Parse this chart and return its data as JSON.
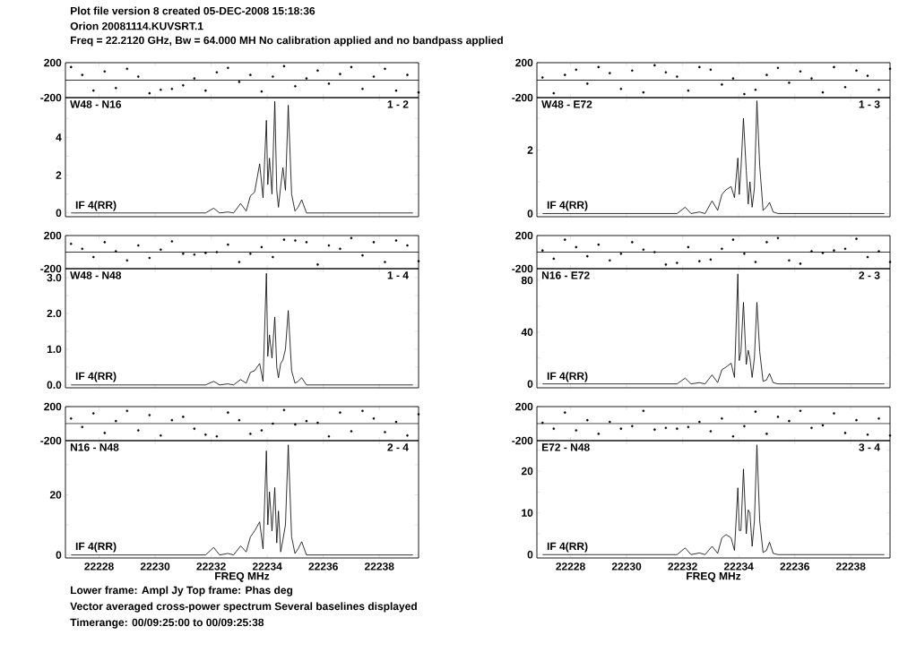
{
  "chart_data": [
    {
      "type": "scatter",
      "title": "Plot file version 8  created 05-DEC-2008 15:18:36",
      "subtitle": "Orion  20081114.KUVSRT.1",
      "annotations": [
        "Freq = 22.2120 GHz, Bw = 64.000 MH   No calibration applied and no bandpass applied"
      ],
      "marker": "circle",
      "color": "#000000",
      "xlim": [
        22226.8,
        22239.4
      ],
      "xticks": [
        22228,
        22230,
        22232,
        22234,
        22236,
        22238
      ],
      "ylim": [
        -200,
        200
      ],
      "yticks": [
        -200,
        200
      ],
      "tick_labels": "y",
      "ref_lines": [
        {
          "axis": "y",
          "value": 0
        }
      ],
      "x": [
        22227.0,
        22227.4,
        22227.8,
        22228.2,
        22228.6,
        22229.0,
        22229.4,
        22229.8,
        22230.2,
        22230.6,
        22231.0,
        22231.4,
        22231.8,
        22232.2,
        22232.6,
        22233.0,
        22233.4,
        22233.8,
        22234.2,
        22234.6,
        22235.0,
        22235.4,
        22235.8,
        22236.2,
        22236.6,
        22237.0,
        22237.4,
        22237.8,
        22238.2,
        22238.6,
        22239.0,
        22239.4
      ],
      "values": [
        150,
        60,
        -120,
        100,
        -90,
        130,
        40,
        -150,
        -110,
        -100,
        -60,
        20,
        -120,
        90,
        140,
        -20,
        60,
        -130,
        40,
        160,
        -70,
        20,
        110,
        -40,
        70,
        150,
        -100,
        40,
        130,
        -120,
        60,
        -140
      ]
    },
    {
      "type": "line",
      "color": "#000000",
      "line_style": "solid",
      "xlim": [
        22226.8,
        22239.4
      ],
      "xticks": [
        22228,
        22230,
        22232,
        22234,
        22236,
        22238
      ],
      "ylim": [
        -0.2,
        6.1
      ],
      "yticks": [
        0,
        {
          "value": 1,
          "label": null
        },
        2,
        {
          "value": 3,
          "label": null
        },
        4,
        {
          "value": 5,
          "label": null
        }
      ],
      "tick_labels": "y",
      "annotations": [
        "W48 - N16",
        "1 - 2",
        "IF 4(RR)"
      ],
      "x": [
        22227.0,
        22231.8,
        22232.09,
        22232.3,
        22232.6,
        22232.8,
        22233.05,
        22233.25,
        22233.4,
        22233.55,
        22233.73,
        22233.85,
        22233.97,
        22234.02,
        22234.08,
        22234.17,
        22234.27,
        22234.34,
        22234.4,
        22234.48,
        22234.56,
        22234.65,
        22234.75,
        22234.87,
        22234.99,
        22235.1,
        22235.23,
        22235.4,
        22239.2
      ],
      "values": [
        0,
        0,
        0.25,
        0,
        0.05,
        0,
        0.5,
        0.1,
        0.9,
        1.1,
        2.6,
        0.8,
        4.9,
        1.5,
        2.9,
        1.0,
        5.9,
        1.2,
        0.3,
        1.4,
        2.4,
        1.2,
        5.7,
        1.0,
        0.1,
        0.3,
        0.7,
        0,
        0
      ]
    },
    {
      "type": "scatter",
      "marker": "circle",
      "color": "#000000",
      "xlim": [
        22226.8,
        22239.4
      ],
      "xticks": [
        22228,
        22230,
        22232,
        22234,
        22236,
        22238
      ],
      "ylim": [
        -200,
        200
      ],
      "yticks": [
        -200,
        200
      ],
      "tick_labels": "y",
      "ref_lines": [
        {
          "axis": "y",
          "value": 0
        }
      ],
      "x": [
        22227.0,
        22227.4,
        22227.8,
        22228.2,
        22228.6,
        22229.0,
        22229.4,
        22229.8,
        22230.2,
        22230.6,
        22231.0,
        22231.4,
        22231.8,
        22232.2,
        22232.6,
        22233.0,
        22233.4,
        22233.8,
        22234.2,
        22234.6,
        22235.0,
        22235.4,
        22235.8,
        22236.2,
        22236.6,
        22237.0,
        22237.4,
        22237.8,
        22238.2,
        22238.6,
        22239.0,
        22239.4
      ],
      "values": [
        30,
        -150,
        60,
        120,
        -40,
        150,
        80,
        -100,
        110,
        -140,
        170,
        90,
        40,
        -120,
        150,
        120,
        -50,
        20,
        -160,
        -110,
        60,
        140,
        -30,
        100,
        20,
        -140,
        150,
        -80,
        110,
        50,
        -110,
        130
      ]
    },
    {
      "type": "line",
      "color": "#000000",
      "line_style": "solid",
      "xlim": [
        22226.8,
        22239.4
      ],
      "xticks": [
        22228,
        22230,
        22232,
        22234,
        22236,
        22238
      ],
      "ylim": [
        -0.1,
        3.65
      ],
      "yticks": [
        0,
        {
          "value": 1,
          "label": null
        },
        2,
        {
          "value": 3,
          "label": null
        }
      ],
      "tick_labels": "y",
      "annotations": [
        "W48 - E72",
        "1 - 3",
        "IF 4(RR)"
      ],
      "x": [
        22227.0,
        22231.8,
        22232.09,
        22232.3,
        22232.6,
        22232.8,
        22233.05,
        22233.25,
        22233.4,
        22233.55,
        22233.73,
        22233.85,
        22233.97,
        22234.02,
        22234.08,
        22234.17,
        22234.27,
        22234.34,
        22234.4,
        22234.48,
        22234.56,
        22234.65,
        22234.75,
        22234.87,
        22234.99,
        22235.1,
        22235.23,
        22235.4,
        22239.2
      ],
      "values": [
        0,
        0,
        0.2,
        0,
        0.05,
        0,
        0.4,
        0.1,
        0.6,
        0.75,
        0.85,
        0.5,
        1.75,
        0.6,
        1.4,
        3.0,
        1.35,
        0.3,
        1.0,
        0.2,
        0.8,
        3.55,
        1.5,
        0.1,
        0.2,
        0.35,
        0.05,
        0,
        0
      ]
    },
    {
      "type": "scatter",
      "marker": "circle",
      "color": "#000000",
      "xlim": [
        22226.8,
        22239.4
      ],
      "xticks": [
        22228,
        22230,
        22232,
        22234,
        22236,
        22238
      ],
      "ylim": [
        -200,
        200
      ],
      "yticks": [
        -200,
        200
      ],
      "tick_labels": "y",
      "ref_lines": [
        {
          "axis": "y",
          "value": 0
        }
      ],
      "x": [
        22227.0,
        22227.4,
        22227.8,
        22228.2,
        22228.6,
        22229.0,
        22229.4,
        22229.8,
        22230.2,
        22230.6,
        22231.0,
        22231.4,
        22231.8,
        22232.2,
        22232.6,
        22233.0,
        22233.4,
        22233.8,
        22234.2,
        22234.6,
        22235.0,
        22235.4,
        22235.8,
        22236.2,
        22236.6,
        22237.0,
        22237.4,
        22237.8,
        22238.2,
        22238.6,
        22239.0,
        22239.4
      ],
      "values": [
        100,
        40,
        -60,
        120,
        10,
        -100,
        80,
        -70,
        30,
        130,
        -20,
        -30,
        -10,
        0,
        90,
        -120,
        -20,
        60,
        -60,
        150,
        140,
        120,
        -150,
        80,
        40,
        170,
        -40,
        120,
        -120,
        140,
        80,
        -110
      ]
    },
    {
      "type": "line",
      "color": "#000000",
      "line_style": "solid",
      "xlim": [
        22226.8,
        22239.4
      ],
      "xticks": [
        22228,
        22230,
        22232,
        22234,
        22236,
        22238
      ],
      "ylim": [
        -0.08,
        3.25
      ],
      "yticks": [
        {
          "value": 0,
          "label": "0.0"
        },
        {
          "value": 0.5,
          "label": null
        },
        {
          "value": 1,
          "label": "1.0"
        },
        {
          "value": 1.5,
          "label": null
        },
        {
          "value": 2,
          "label": "2.0"
        },
        {
          "value": 2.5,
          "label": null
        },
        {
          "value": 3,
          "label": "3.0"
        }
      ],
      "tick_labels": "y",
      "annotations": [
        "W48 - N48",
        "1 - 4",
        "IF 4(RR)"
      ],
      "x": [
        22227.0,
        22231.8,
        22232.09,
        22232.3,
        22232.6,
        22232.8,
        22233.05,
        22233.25,
        22233.4,
        22233.55,
        22233.73,
        22233.85,
        22233.97,
        22234.02,
        22234.08,
        22234.17,
        22234.27,
        22234.34,
        22234.4,
        22234.48,
        22234.56,
        22234.65,
        22234.75,
        22234.87,
        22234.99,
        22235.1,
        22235.23,
        22235.4,
        22239.2
      ],
      "values": [
        0,
        0,
        0.1,
        0,
        0.03,
        0,
        0.15,
        0.05,
        0.35,
        0.4,
        0.6,
        0.1,
        3.12,
        0.8,
        1.4,
        0.75,
        1.9,
        0.5,
        0.2,
        0.6,
        0.7,
        1.0,
        2.08,
        0.4,
        0.05,
        0.1,
        0.2,
        0,
        0
      ]
    },
    {
      "type": "scatter",
      "marker": "circle",
      "color": "#000000",
      "xlim": [
        22226.8,
        22239.4
      ],
      "xticks": [
        22228,
        22230,
        22232,
        22234,
        22236,
        22238
      ],
      "ylim": [
        -200,
        200
      ],
      "yticks": [
        -200,
        200
      ],
      "tick_labels": "y",
      "ref_lines": [
        {
          "axis": "y",
          "value": 0
        }
      ],
      "x": [
        22227.0,
        22227.4,
        22227.8,
        22228.2,
        22228.6,
        22229.0,
        22229.4,
        22229.8,
        22230.2,
        22230.6,
        22231.0,
        22231.4,
        22231.8,
        22232.2,
        22232.6,
        22233.0,
        22233.4,
        22233.8,
        22234.2,
        22234.6,
        22235.0,
        22235.4,
        22235.8,
        22236.2,
        22236.6,
        22237.0,
        22237.4,
        22237.8,
        22238.2,
        22238.6,
        22239.0,
        22239.4
      ],
      "values": [
        20,
        -80,
        150,
        60,
        -50,
        90,
        -100,
        -20,
        120,
        30,
        0,
        -150,
        -130,
        60,
        -110,
        -90,
        40,
        150,
        -20,
        -120,
        120,
        170,
        -100,
        -140,
        10,
        -10,
        20,
        40,
        160,
        -60,
        10,
        -120
      ]
    },
    {
      "type": "line",
      "color": "#000000",
      "line_style": "solid",
      "xlim": [
        22226.8,
        22239.4
      ],
      "xticks": [
        22228,
        22230,
        22232,
        22234,
        22236,
        22238
      ],
      "ylim": [
        -3,
        89
      ],
      "yticks": [
        0,
        {
          "value": 20,
          "label": null
        },
        40,
        {
          "value": 60,
          "label": null
        },
        80
      ],
      "tick_labels": "y",
      "annotations": [
        "N16 - E72",
        "2 - 3",
        "IF 4(RR)"
      ],
      "x": [
        22227.0,
        22231.8,
        22232.09,
        22232.3,
        22232.6,
        22232.8,
        22233.05,
        22233.25,
        22233.4,
        22233.55,
        22233.73,
        22233.85,
        22233.97,
        22234.02,
        22234.08,
        22234.17,
        22234.27,
        22234.34,
        22234.4,
        22234.48,
        22234.56,
        22234.65,
        22234.75,
        22234.87,
        22234.99,
        22235.1,
        22235.23,
        22235.4,
        22239.2
      ],
      "values": [
        0,
        0,
        4.5,
        0,
        1,
        0,
        7,
        1,
        11,
        13,
        16,
        5,
        85,
        18,
        25,
        63,
        15,
        26,
        20,
        5,
        20,
        63,
        25,
        2,
        3,
        8,
        1,
        0,
        0
      ]
    },
    {
      "type": "scatter",
      "marker": "circle",
      "color": "#000000",
      "xlim": [
        22226.8,
        22239.4
      ],
      "xticks": [
        22228,
        22230,
        22232,
        22234,
        22236,
        22238
      ],
      "ylim": [
        -200,
        200
      ],
      "yticks": [
        -200,
        200
      ],
      "tick_labels": "y",
      "ref_lines": [
        {
          "axis": "y",
          "value": 0
        }
      ],
      "x": [
        22227.0,
        22227.4,
        22227.8,
        22228.2,
        22228.6,
        22229.0,
        22229.4,
        22229.8,
        22230.2,
        22230.6,
        22231.0,
        22231.4,
        22231.8,
        22232.2,
        22232.6,
        22233.0,
        22233.4,
        22233.8,
        22234.2,
        22234.6,
        22235.0,
        22235.4,
        22235.8,
        22236.2,
        22236.6,
        22237.0,
        22237.4,
        22237.8,
        22238.2,
        22238.6,
        22239.0,
        22239.4
      ],
      "values": [
        60,
        -40,
        120,
        -110,
        30,
        150,
        -80,
        100,
        -140,
        40,
        80,
        -60,
        -130,
        -150,
        130,
        40,
        -120,
        -80,
        0,
        160,
        -10,
        30,
        10,
        -150,
        130,
        -90,
        150,
        60,
        -100,
        20,
        -140,
        110
      ]
    },
    {
      "type": "line",
      "color": "#000000",
      "line_style": "solid",
      "xlim": [
        22226.8,
        22239.4
      ],
      "xticks": [
        22228,
        22230,
        22232,
        22234,
        22236,
        22238
      ],
      "ylim": [
        -1,
        38
      ],
      "yticks": [
        0,
        {
          "value": 10,
          "label": null
        },
        20,
        {
          "value": 30,
          "label": null
        }
      ],
      "xlabel": "FREQ MHz",
      "annotations": [
        "N16 - N48",
        "2 - 4",
        "IF 4(RR)",
        "Lower frame: Ampl Jy   Top frame: Phas deg",
        "Vector averaged cross-power spectrum    Several baselines displayed",
        "Timerange: 00/09:25:00 to 00/09:25:38"
      ],
      "x": [
        22227.0,
        22231.8,
        22232.09,
        22232.3,
        22232.6,
        22232.8,
        22233.05,
        22233.25,
        22233.4,
        22233.55,
        22233.73,
        22233.85,
        22233.97,
        22234.02,
        22234.08,
        22234.17,
        22234.27,
        22234.34,
        22234.4,
        22234.48,
        22234.56,
        22234.65,
        22234.75,
        22234.87,
        22234.99,
        22235.1,
        22235.23,
        22235.4,
        22239.2
      ],
      "values": [
        0,
        0,
        2.5,
        0,
        0.5,
        0,
        3,
        1,
        6,
        8,
        11,
        2,
        34.6,
        10,
        21,
        8,
        22.4,
        4,
        14.6,
        1,
        5,
        10,
        36.6,
        6,
        0.5,
        2,
        4.4,
        0,
        0
      ]
    },
    {
      "type": "scatter",
      "marker": "circle",
      "color": "#000000",
      "xlim": [
        22226.8,
        22239.4
      ],
      "xticks": [
        22228,
        22230,
        22232,
        22234,
        22236,
        22238
      ],
      "ylim": [
        -200,
        200
      ],
      "yticks": [
        -200,
        200
      ],
      "tick_labels": "y",
      "ref_lines": [
        {
          "axis": "y",
          "value": 0
        }
      ],
      "x": [
        22227.0,
        22227.4,
        22227.8,
        22228.2,
        22228.6,
        22229.0,
        22229.4,
        22229.8,
        22230.2,
        22230.6,
        22231.0,
        22231.4,
        22231.8,
        22232.2,
        22232.6,
        22233.0,
        22233.4,
        22233.8,
        22234.2,
        22234.6,
        22235.0,
        22235.4,
        22235.8,
        22236.2,
        22236.6,
        22237.0,
        22237.4,
        22237.8,
        22238.2,
        22238.6,
        22239.0,
        22239.4
      ],
      "values": [
        10,
        -60,
        130,
        -80,
        40,
        -120,
        20,
        -60,
        -30,
        150,
        -70,
        -50,
        -60,
        -40,
        20,
        -90,
        60,
        -150,
        -30,
        140,
        -120,
        80,
        30,
        150,
        -50,
        -20,
        120,
        -110,
        40,
        -130,
        60,
        -140
      ]
    },
    {
      "type": "line",
      "color": "#000000",
      "line_style": "solid",
      "xlim": [
        22226.8,
        22239.4
      ],
      "xticks": [
        22228,
        22230,
        22232,
        22234,
        22236,
        22238
      ],
      "ylim": [
        -0.8,
        27.3
      ],
      "yticks": [
        0,
        {
          "value": 5,
          "label": null
        },
        10,
        {
          "value": 15,
          "label": null
        },
        20,
        {
          "value": 25,
          "label": null
        }
      ],
      "xlabel": "FREQ MHz",
      "annotations": [
        "E72 - N48",
        "3 - 4",
        "IF 4(RR)"
      ],
      "x": [
        22227.0,
        22231.8,
        22232.09,
        22232.3,
        22232.6,
        22232.8,
        22233.05,
        22233.25,
        22233.4,
        22233.55,
        22233.73,
        22233.85,
        22233.97,
        22234.02,
        22234.08,
        22234.17,
        22234.27,
        22234.34,
        22234.4,
        22234.48,
        22234.56,
        22234.65,
        22234.75,
        22234.87,
        22234.99,
        22235.1,
        22235.23,
        22235.4,
        22239.2
      ],
      "values": [
        0,
        0,
        1.6,
        0,
        0.4,
        0,
        2,
        0.3,
        4,
        4.8,
        4,
        1,
        16,
        5.8,
        5.8,
        20.5,
        5,
        10.7,
        10,
        2,
        8,
        26.3,
        8,
        0.5,
        1,
        3,
        0.3,
        0,
        0
      ]
    }
  ]
}
